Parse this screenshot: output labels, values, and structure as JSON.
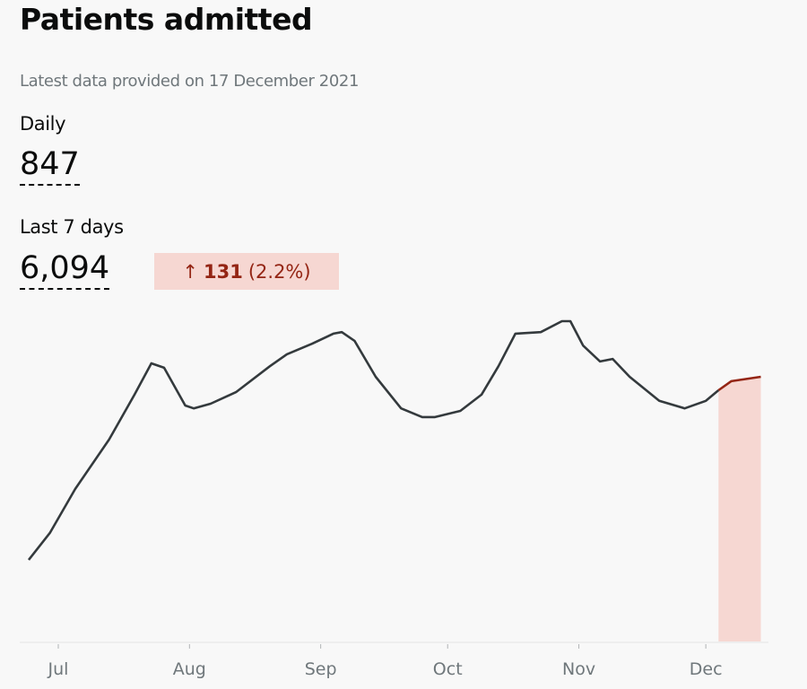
{
  "card": {
    "title": "Patients admitted",
    "subtitle": "Latest data provided on 17 December 2021",
    "daily": {
      "label": "Daily",
      "value": "847"
    },
    "last7": {
      "label": "Last 7 days",
      "value": "6,094",
      "change": {
        "arrow": "↑",
        "value": "131",
        "percent": "(2.2%)",
        "direction": "up"
      }
    }
  },
  "colors": {
    "line": "#343a3d",
    "recent_line": "#942514",
    "highlight": "#f6d7d2",
    "badge_text": "#942514",
    "badge_bg": "#f6d7d2"
  },
  "chart_data": {
    "type": "line",
    "title": "",
    "xlabel": "",
    "ylabel": "",
    "y_axis_shown": false,
    "grid": false,
    "ylim": [
      0,
      1100
    ],
    "x_ticks": [
      {
        "date": "2021-07-01",
        "label": "Jul"
      },
      {
        "date": "2021-08-01",
        "label": "Aug"
      },
      {
        "date": "2021-09-01",
        "label": "Sep"
      },
      {
        "date": "2021-10-01",
        "label": "Oct"
      },
      {
        "date": "2021-11-01",
        "label": "Nov"
      },
      {
        "date": "2021-12-01",
        "label": "Dec"
      }
    ],
    "highlight_range": [
      "2021-12-04",
      "2021-12-14"
    ],
    "series": [
      {
        "points": [
          [
            "2021-06-24",
            261
          ],
          [
            "2021-06-29",
            347
          ],
          [
            "2021-07-05",
            488
          ],
          [
            "2021-07-13",
            646
          ],
          [
            "2021-07-19",
            790
          ],
          [
            "2021-07-23",
            890
          ],
          [
            "2021-07-26",
            876
          ],
          [
            "2021-07-31",
            755
          ],
          [
            "2021-08-02",
            746
          ],
          [
            "2021-08-06",
            761
          ],
          [
            "2021-08-12",
            798
          ],
          [
            "2021-08-20",
            881
          ],
          [
            "2021-08-24",
            919
          ],
          [
            "2021-08-30",
            953
          ],
          [
            "2021-09-04",
            985
          ],
          [
            "2021-09-06",
            990
          ],
          [
            "2021-09-09",
            962
          ],
          [
            "2021-09-14",
            847
          ],
          [
            "2021-09-20",
            746
          ],
          [
            "2021-09-25",
            718
          ],
          [
            "2021-09-28",
            718
          ],
          [
            "2021-10-04",
            738
          ],
          [
            "2021-10-09",
            790
          ],
          [
            "2021-10-13",
            881
          ],
          [
            "2021-10-17",
            985
          ],
          [
            "2021-10-23",
            990
          ],
          [
            "2021-10-28",
            1025
          ],
          [
            "2021-10-30",
            1025
          ],
          [
            "2021-11-02",
            947
          ],
          [
            "2021-11-06",
            896
          ],
          [
            "2021-11-09",
            904
          ],
          [
            "2021-11-13",
            847
          ],
          [
            "2021-11-20",
            770
          ],
          [
            "2021-11-26",
            746
          ],
          [
            "2021-12-01",
            770
          ],
          [
            "2021-12-04",
            804
          ],
          [
            "2021-12-07",
            833
          ],
          [
            "2021-12-14",
            847
          ]
        ]
      }
    ]
  }
}
